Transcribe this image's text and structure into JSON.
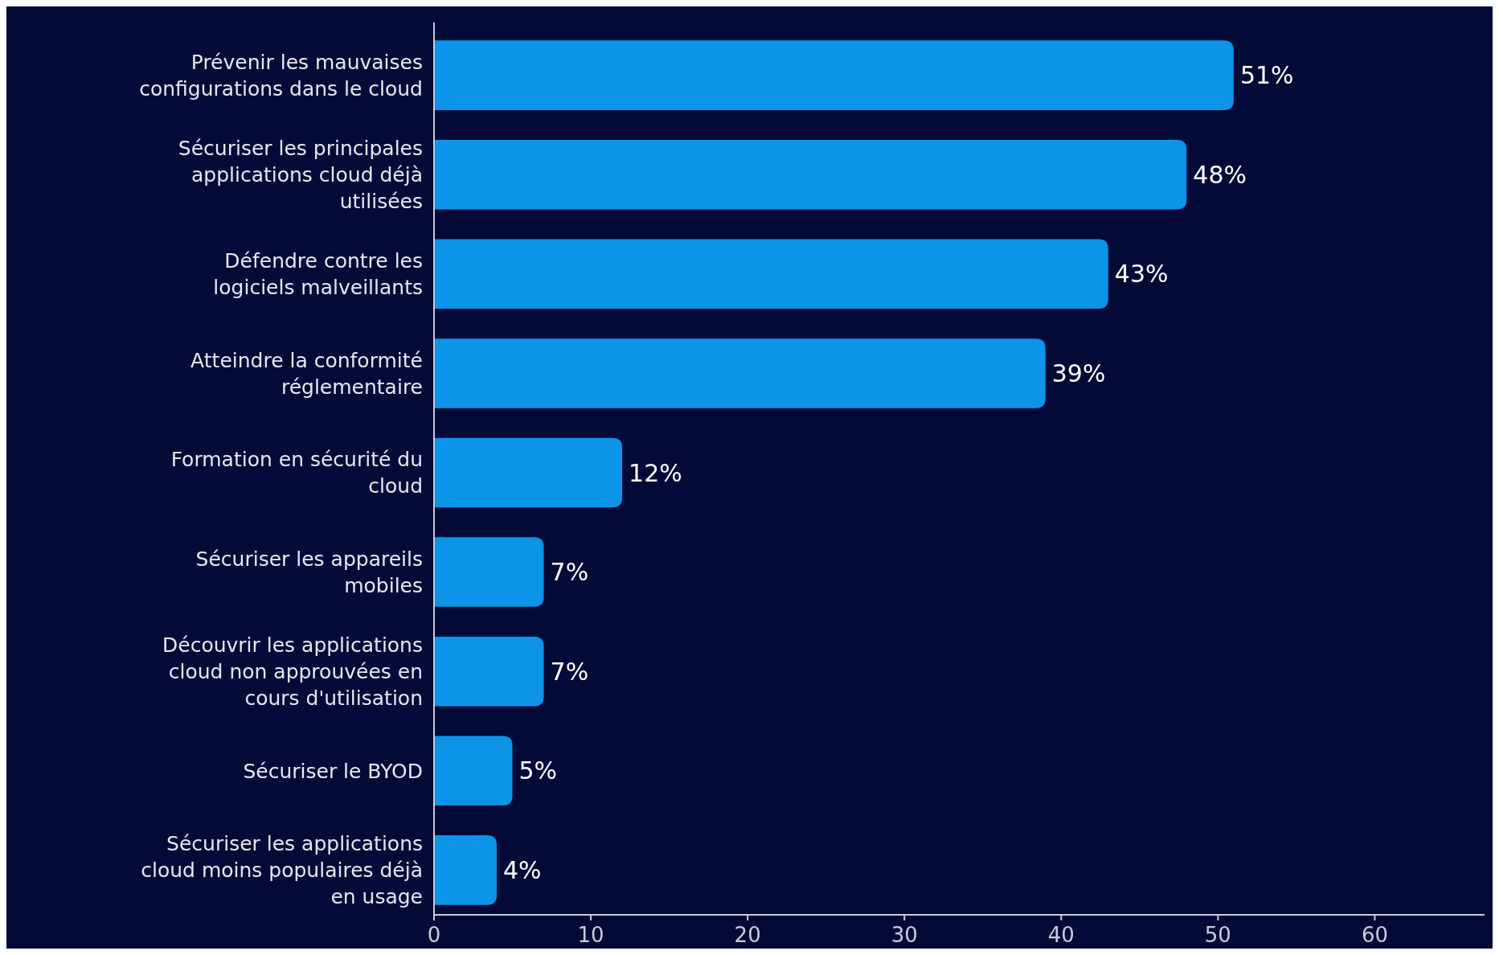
{
  "chart_data": {
    "type": "bar",
    "orientation": "horizontal",
    "categories": [
      "Prévenir les mauvaises configurations dans le cloud",
      "Sécuriser les principales applications cloud déjà utilisées",
      "Défendre contre les logiciels malveillants",
      "Atteindre la conformité réglementaire",
      "Formation en sécurité du cloud",
      "Sécuriser les appareils mobiles",
      "Découvrir les applications cloud non approuvées en cours d'utilisation",
      "Sécuriser le BYOD",
      "Sécuriser les applications cloud moins populaires déjà en usage"
    ],
    "values": [
      51,
      48,
      43,
      39,
      12,
      7,
      7,
      5,
      4
    ],
    "value_labels": [
      "51%",
      "48%",
      "43%",
      "39%",
      "12%",
      "7%",
      "7%",
      "5%",
      "4%"
    ],
    "color": "#0b94e8",
    "xlim": [
      0,
      67
    ],
    "xticks": [
      0,
      10,
      20,
      30,
      40,
      50,
      60
    ]
  }
}
